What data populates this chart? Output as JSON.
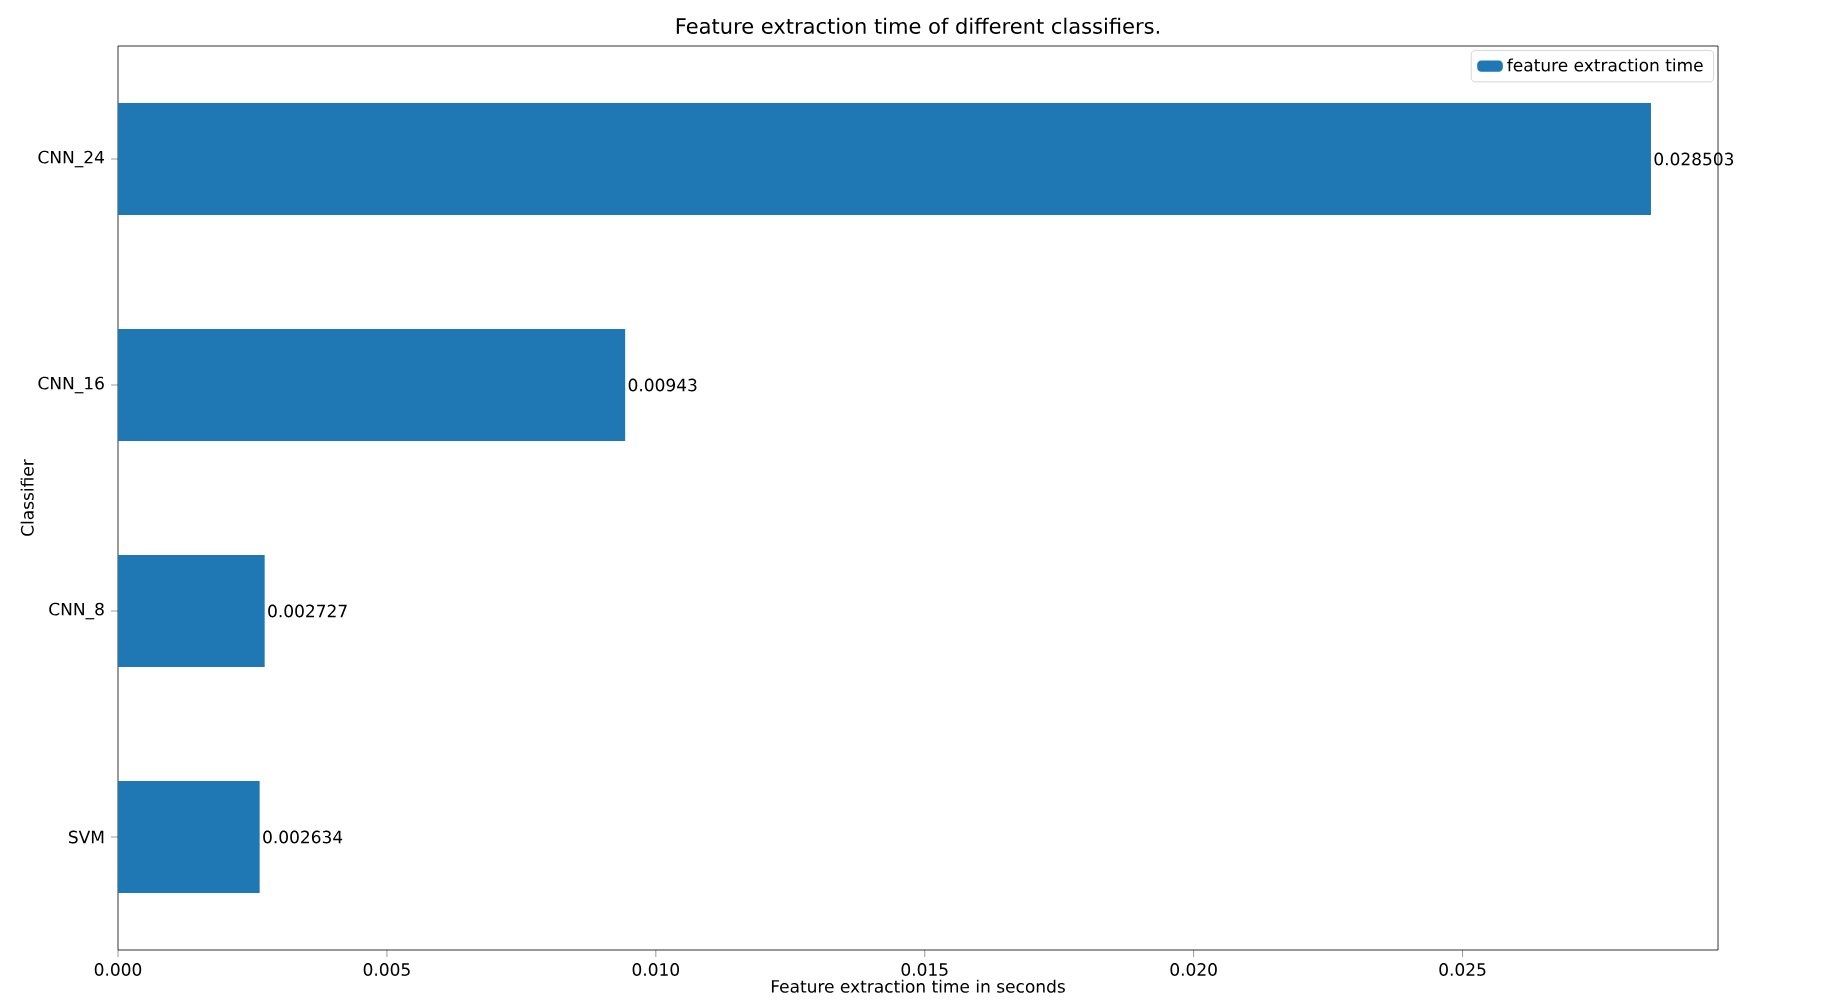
{
  "chart_data": {
    "type": "bar",
    "orientation": "horizontal",
    "title": "Feature extraction time of different classifiers.",
    "xlabel": "Feature extraction time in seconds",
    "ylabel": "Classifier",
    "categories": [
      "CNN_24",
      "CNN_16",
      "CNN_8",
      "SVM"
    ],
    "series": [
      {
        "name": "feature extraction time",
        "color": "#1f77b4",
        "values": [
          0.028503,
          0.00943,
          0.002727,
          0.002634
        ]
      }
    ],
    "xlim": [
      0,
      0.02975
    ],
    "xticks": [
      {
        "value": 0,
        "label": "0.000"
      },
      0.005,
      {
        "value": 0.01,
        "label": "0.010"
      },
      0.015,
      {
        "value": 0.02,
        "label": "0.020"
      },
      0.025
    ],
    "data_labels": true,
    "legend": "top right",
    "grid": false
  }
}
